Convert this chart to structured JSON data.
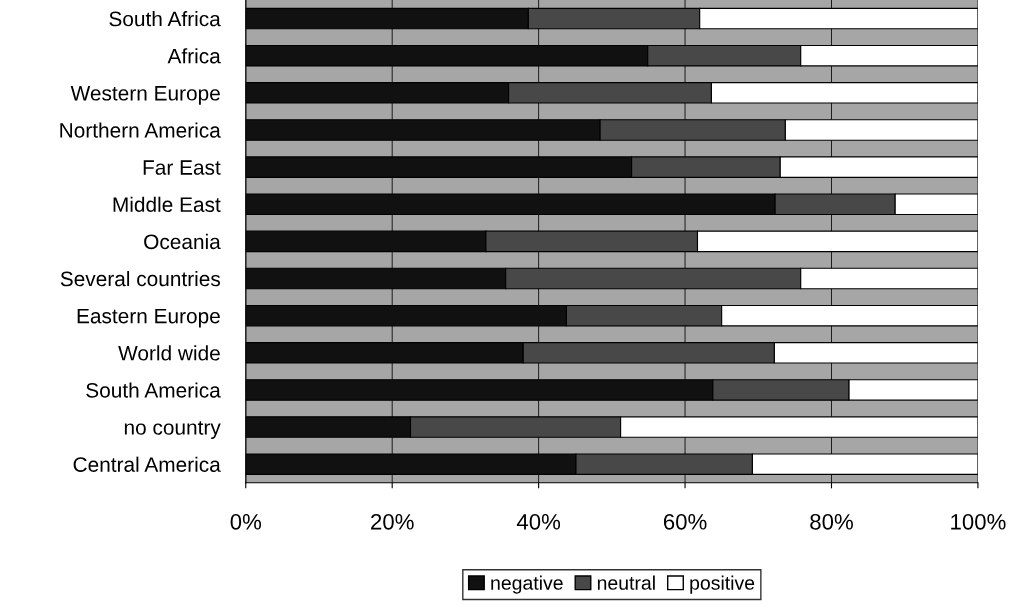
{
  "chart_data": {
    "type": "bar",
    "orientation": "horizontal",
    "stacked": true,
    "categories": [
      "South Africa",
      "Africa",
      "Western Europe",
      "Northern America",
      "Far East",
      "Middle East",
      "Oceania",
      "Several countries",
      "Eastern Europe",
      "World wide",
      "South America",
      "no country",
      "Central America"
    ],
    "series": [
      {
        "name": "negative",
        "color": "#111111",
        "values": [
          38.6,
          54.9,
          35.9,
          48.4,
          52.7,
          72.3,
          32.8,
          35.5,
          43.8,
          37.9,
          63.8,
          22.5,
          45.1
        ]
      },
      {
        "name": "neutral",
        "color": "#484848",
        "values": [
          23.4,
          20.9,
          27.7,
          25.3,
          20.3,
          16.4,
          28.9,
          40.3,
          21.2,
          34.3,
          18.6,
          28.7,
          24.1
        ]
      },
      {
        "name": "positive",
        "color": "#ffffff",
        "values": [
          38.0,
          24.2,
          36.4,
          26.3,
          27.0,
          11.3,
          38.3,
          24.2,
          35.0,
          27.8,
          17.6,
          48.8,
          30.8
        ]
      }
    ],
    "xlim": [
      0,
      100
    ],
    "xticks": [
      {
        "value": 0,
        "label": "0%"
      },
      {
        "value": 20,
        "label": "20%"
      },
      {
        "value": 40,
        "label": "40%"
      },
      {
        "value": 60,
        "label": "60%"
      },
      {
        "value": 80,
        "label": "80%"
      },
      {
        "value": 100,
        "label": "100%"
      }
    ],
    "grid": "x",
    "legend": "bottom"
  }
}
